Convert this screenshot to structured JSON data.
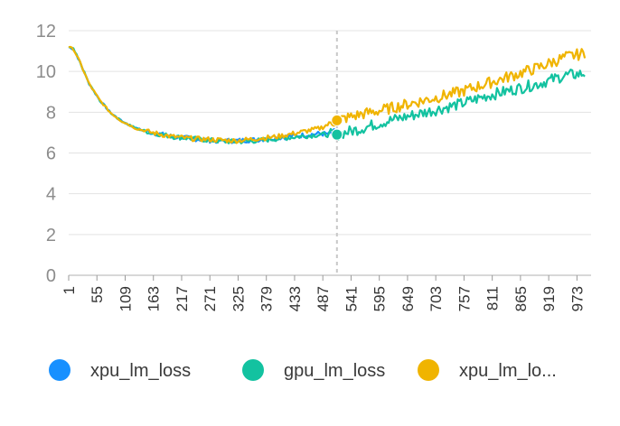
{
  "chart_data": {
    "type": "line",
    "x_ticks": [
      1,
      55,
      109,
      163,
      217,
      271,
      325,
      379,
      433,
      487,
      541,
      595,
      649,
      703,
      757,
      811,
      865,
      919,
      973
    ],
    "y_ticks": [
      0,
      2,
      4,
      6,
      8,
      10,
      12
    ],
    "xlim": [
      1,
      1000
    ],
    "ylim": [
      0,
      12
    ],
    "grid": "horizontal",
    "legend_position": "bottom",
    "marker_x": 514,
    "series": [
      {
        "name": "xpu_lm_loss",
        "color": "#1890ff",
        "x": [
          1,
          10,
          20,
          40,
          60,
          80,
          100,
          130,
          160,
          200,
          240,
          280,
          320,
          360,
          400,
          440,
          480,
          514
        ],
        "values": [
          11.2,
          11.1,
          10.6,
          9.4,
          8.6,
          8.0,
          7.6,
          7.2,
          7.0,
          6.8,
          6.7,
          6.6,
          6.6,
          6.65,
          6.75,
          6.85,
          6.95,
          6.9
        ]
      },
      {
        "name": "gpu_lm_loss",
        "color": "#13c2a0",
        "x": [
          1,
          10,
          20,
          40,
          60,
          80,
          100,
          130,
          160,
          200,
          240,
          280,
          320,
          360,
          400,
          440,
          480,
          514,
          560,
          600,
          650,
          700,
          750,
          800,
          850,
          900,
          950,
          990
        ],
        "values": [
          11.2,
          11.1,
          10.6,
          9.4,
          8.6,
          8.0,
          7.6,
          7.2,
          7.0,
          6.8,
          6.7,
          6.6,
          6.55,
          6.6,
          6.7,
          6.8,
          6.9,
          6.9,
          7.2,
          7.5,
          7.8,
          8.1,
          8.4,
          8.8,
          9.1,
          9.4,
          9.8,
          9.9
        ]
      },
      {
        "name": "xpu_lm_lo...",
        "color": "#f0b400",
        "x": [
          1,
          10,
          20,
          40,
          60,
          80,
          100,
          130,
          160,
          200,
          240,
          280,
          320,
          360,
          400,
          440,
          480,
          514,
          560,
          600,
          650,
          700,
          750,
          800,
          850,
          900,
          950,
          990
        ],
        "values": [
          11.2,
          11.1,
          10.6,
          9.4,
          8.6,
          8.0,
          7.6,
          7.2,
          7.0,
          6.8,
          6.7,
          6.65,
          6.6,
          6.7,
          6.8,
          7.0,
          7.2,
          7.6,
          7.9,
          8.1,
          8.4,
          8.7,
          9.0,
          9.4,
          9.8,
          10.2,
          10.7,
          10.9
        ]
      }
    ]
  }
}
